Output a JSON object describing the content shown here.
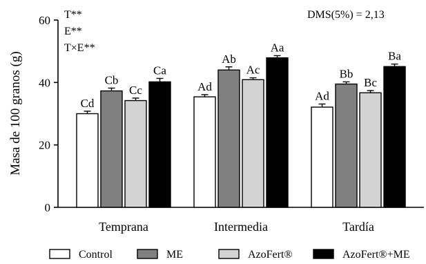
{
  "chart_data": {
    "type": "bar",
    "ylabel": "Masa de 100 granos (g)",
    "xlabel": "",
    "ylim": [
      0,
      60
    ],
    "yticks": [
      0,
      20,
      40,
      60
    ],
    "categories": [
      "Temprana",
      "Intermedia",
      "Tardía"
    ],
    "series": [
      {
        "name": "Control",
        "color": "#ffffff",
        "values": [
          30.0,
          35.4,
          32.1
        ],
        "errors": [
          0.8,
          0.7,
          1.0
        ],
        "labels": [
          "Cd",
          "Ad",
          "Ad"
        ]
      },
      {
        "name": "ME",
        "color": "#808080",
        "values": [
          37.3,
          44.0,
          39.5
        ],
        "errors": [
          0.9,
          1.0,
          0.7
        ],
        "labels": [
          "Cb",
          "Ab",
          "Bb"
        ]
      },
      {
        "name": "AzoFert®",
        "color": "#d3d3d3",
        "values": [
          34.2,
          40.9,
          36.7
        ],
        "errors": [
          0.8,
          0.6,
          0.7
        ],
        "labels": [
          "Cc",
          "Ac",
          "Bc"
        ]
      },
      {
        "name": "AzoFert®+ME",
        "color": "#000000",
        "values": [
          40.2,
          47.9,
          45.1
        ],
        "errors": [
          1.1,
          0.7,
          0.8
        ],
        "labels": [
          "Ca",
          "Aa",
          "Ba"
        ]
      }
    ],
    "annotations": {
      "significance": [
        "T**",
        "E**",
        "T×E**"
      ],
      "dms": "DMS(5%) = 2,13"
    },
    "legend_position": "bottom",
    "grid": false
  }
}
